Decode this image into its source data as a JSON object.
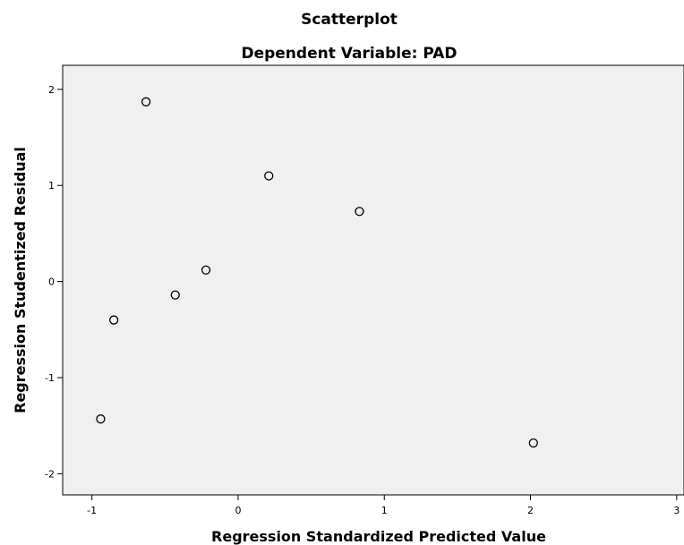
{
  "chart_data": {
    "type": "scatter",
    "title": "Scatterplot",
    "subtitle": "Dependent Variable: PAD",
    "xlabel": "Regression Standardized Predicted Value",
    "ylabel": "Regression Studentized Residual",
    "xlim": [
      -1.2,
      3.05
    ],
    "ylim": [
      -2.22,
      2.25
    ],
    "xticks": [
      -1,
      0,
      1,
      2,
      3
    ],
    "yticks": [
      -2,
      -1,
      0,
      1,
      2
    ],
    "xtick_labels": [
      "-1",
      "0",
      "1",
      "2",
      "3"
    ],
    "ytick_labels": [
      "-2",
      "-1",
      "0",
      "1",
      "2"
    ],
    "grid": false,
    "plot_background": "#f0f0f0",
    "marker": "open-circle",
    "points": [
      {
        "x": -0.63,
        "y": 1.87
      },
      {
        "x": 0.21,
        "y": 1.1
      },
      {
        "x": 0.83,
        "y": 0.73
      },
      {
        "x": -0.22,
        "y": 0.12
      },
      {
        "x": -0.43,
        "y": -0.14
      },
      {
        "x": -0.85,
        "y": -0.4
      },
      {
        "x": -0.94,
        "y": -1.43
      },
      {
        "x": 2.02,
        "y": -1.68
      }
    ]
  }
}
